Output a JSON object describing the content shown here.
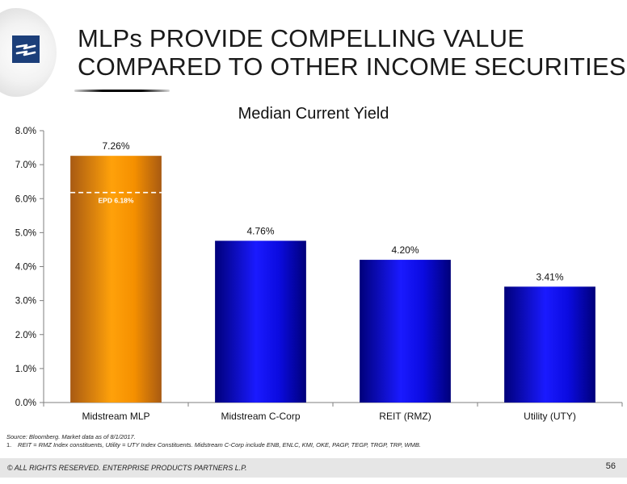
{
  "header": {
    "title_line1": "MLPs PROVIDE COMPELLING VALUE",
    "title_line2": "COMPARED TO OTHER INCOME SECURITIES"
  },
  "chart_data": {
    "type": "bar",
    "title": "Median Current Yield",
    "categories": [
      "Midstream MLP",
      "Midstream C-Corp",
      "REIT (RMZ)",
      "Utility (UTY)"
    ],
    "values": [
      7.26,
      4.76,
      4.2,
      3.41
    ],
    "value_labels": [
      "7.26%",
      "4.76%",
      "4.20%",
      "3.41%"
    ],
    "bar_colors": [
      "#f59a0a",
      "#1212d8",
      "#1212d8",
      "#1212d8"
    ],
    "ylim": [
      0,
      8
    ],
    "yticks": [
      0,
      1,
      2,
      3,
      4,
      5,
      6,
      7,
      8
    ],
    "ytick_labels": [
      "0.0%",
      "1.0%",
      "2.0%",
      "3.0%",
      "4.0%",
      "5.0%",
      "6.0%",
      "7.0%",
      "8.0%"
    ],
    "xlabel": "",
    "ylabel": "",
    "grid": false,
    "legend": "none",
    "annotation": {
      "label": "EPD 6.18%",
      "value": 6.18,
      "category_index": 0
    }
  },
  "footnotes": {
    "source": "Source:  Bloomberg.  Market data as of 8/1/2017.",
    "note_number": "1.",
    "note_text": "REIT = RMZ Index constituents, Utility = UTY Index Constituents.  Midstream C-Corp include ENB, ENLC, KMI, OKE, PAGP, TEGP, TRGP, TRP, WMB."
  },
  "footer": {
    "copyright": "© ALL RIGHTS RESERVED. ENTERPRISE PRODUCTS PARTNERS L.P.",
    "page_number": "56"
  },
  "logo": {
    "icon": "enterprise-logo-icon",
    "color": "#1c3f7a"
  }
}
